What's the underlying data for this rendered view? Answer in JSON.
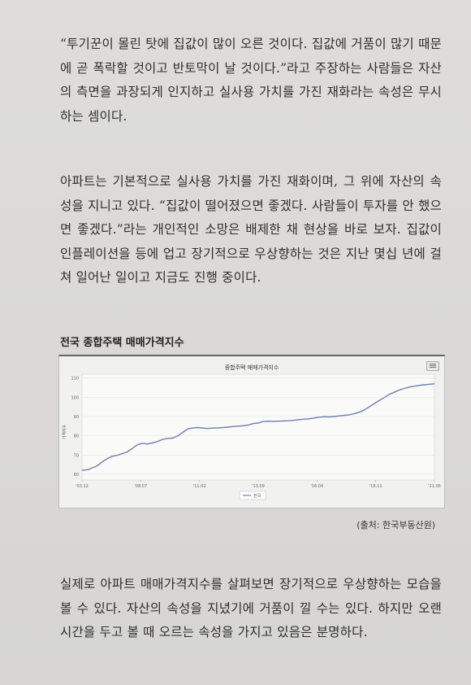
{
  "paragraphs": [
    "“투기꾼이 몰린 탓에 집값이 많이 오른 것이다. 집값에 거품이 많기 때문에 곧 폭락할 것이고 반토막이 날 것이다.”라고 주장하는 사람들은 자산의 측면을 과장되게 인지하고 실사용 가치를 가진 재화라는 속성은 무시하는 셈이다.",
    "아파트는 기본적으로 실사용 가치를 가진 재화이며, 그 위에 자산의 속성을 지니고 있다. “집값이 떨어졌으면 좋겠다. 사람들이 투자를 안 했으면 좋겠다.”라는 개인적인 소망은 배제한 채 현상을 바로 보자. 집값이 인플레이션을 등에 업고 장기적으로 우상향하는 것은 지난 몇십 년에 걸쳐 일어난 일이고 지금도 진행 중이다.",
    "실제로 아파트 매매가격지수를 살펴보면 장기적으로 우상향하는 모습을 볼 수 있다. 자산의 속성을 지녔기에 거품이 낄 수는 있다. 하지만 오랜 시간을 두고 볼 때 오르는 속성을 가지고 있음은 분명하다."
  ],
  "figure": {
    "caption": "전국 종합주택 매매가격지수",
    "source": "(출처: 한국부동산원)"
  },
  "chart_data": {
    "type": "line",
    "title": "종합주택 매매가격지수",
    "ylabel": "가격지수",
    "xlabel": "",
    "ylim": [
      57,
      112
    ],
    "yticks": [
      60,
      70,
      80,
      90,
      100,
      110
    ],
    "xtick_labels": [
      "'03.12",
      "'08.07",
      "'11.02",
      "'13.09",
      "'16.04",
      "'18.11",
      "'21.06"
    ],
    "series": [
      {
        "name": "전국",
        "color": "#6f7fb0",
        "x": [
          0,
          2,
          4,
          6,
          8,
          10,
          12,
          15,
          18,
          21,
          24,
          27,
          30,
          33,
          36,
          39,
          42,
          45,
          48,
          51,
          54,
          57,
          60,
          63,
          66,
          69,
          72,
          75,
          78,
          81,
          84,
          87,
          90,
          93,
          96,
          99,
          102,
          105,
          108,
          111,
          114,
          117,
          120,
          123,
          126,
          129,
          132,
          135,
          138,
          141,
          144,
          147,
          150,
          153,
          156,
          159,
          162,
          165,
          168,
          171,
          174,
          177,
          180,
          183,
          186,
          189,
          192,
          195,
          198,
          201,
          204,
          207,
          210
        ],
        "y": [
          62.0,
          62.2,
          62.5,
          63.3,
          63.9,
          65.0,
          66.4,
          68.1,
          69.3,
          69.8,
          70.7,
          71.6,
          73.4,
          75.3,
          76.1,
          75.7,
          76.3,
          77.0,
          78.1,
          78.6,
          78.8,
          79.9,
          81.8,
          83.5,
          84.1,
          84.3,
          84.0,
          83.8,
          84.0,
          84.1,
          84.3,
          84.5,
          84.8,
          85.0,
          85.2,
          85.6,
          86.3,
          86.6,
          87.4,
          87.6,
          87.5,
          87.6,
          87.7,
          87.8,
          88.0,
          88.4,
          88.6,
          88.8,
          89.2,
          89.6,
          89.9,
          89.8,
          90.0,
          90.3,
          90.6,
          90.9,
          91.4,
          92.2,
          93.3,
          95.0,
          96.6,
          98.3,
          99.8,
          101.5,
          102.6,
          103.8,
          104.6,
          105.3,
          105.8,
          106.2,
          106.5,
          106.8,
          107.0
        ]
      }
    ],
    "legend": "bottom-center",
    "grid": true
  }
}
